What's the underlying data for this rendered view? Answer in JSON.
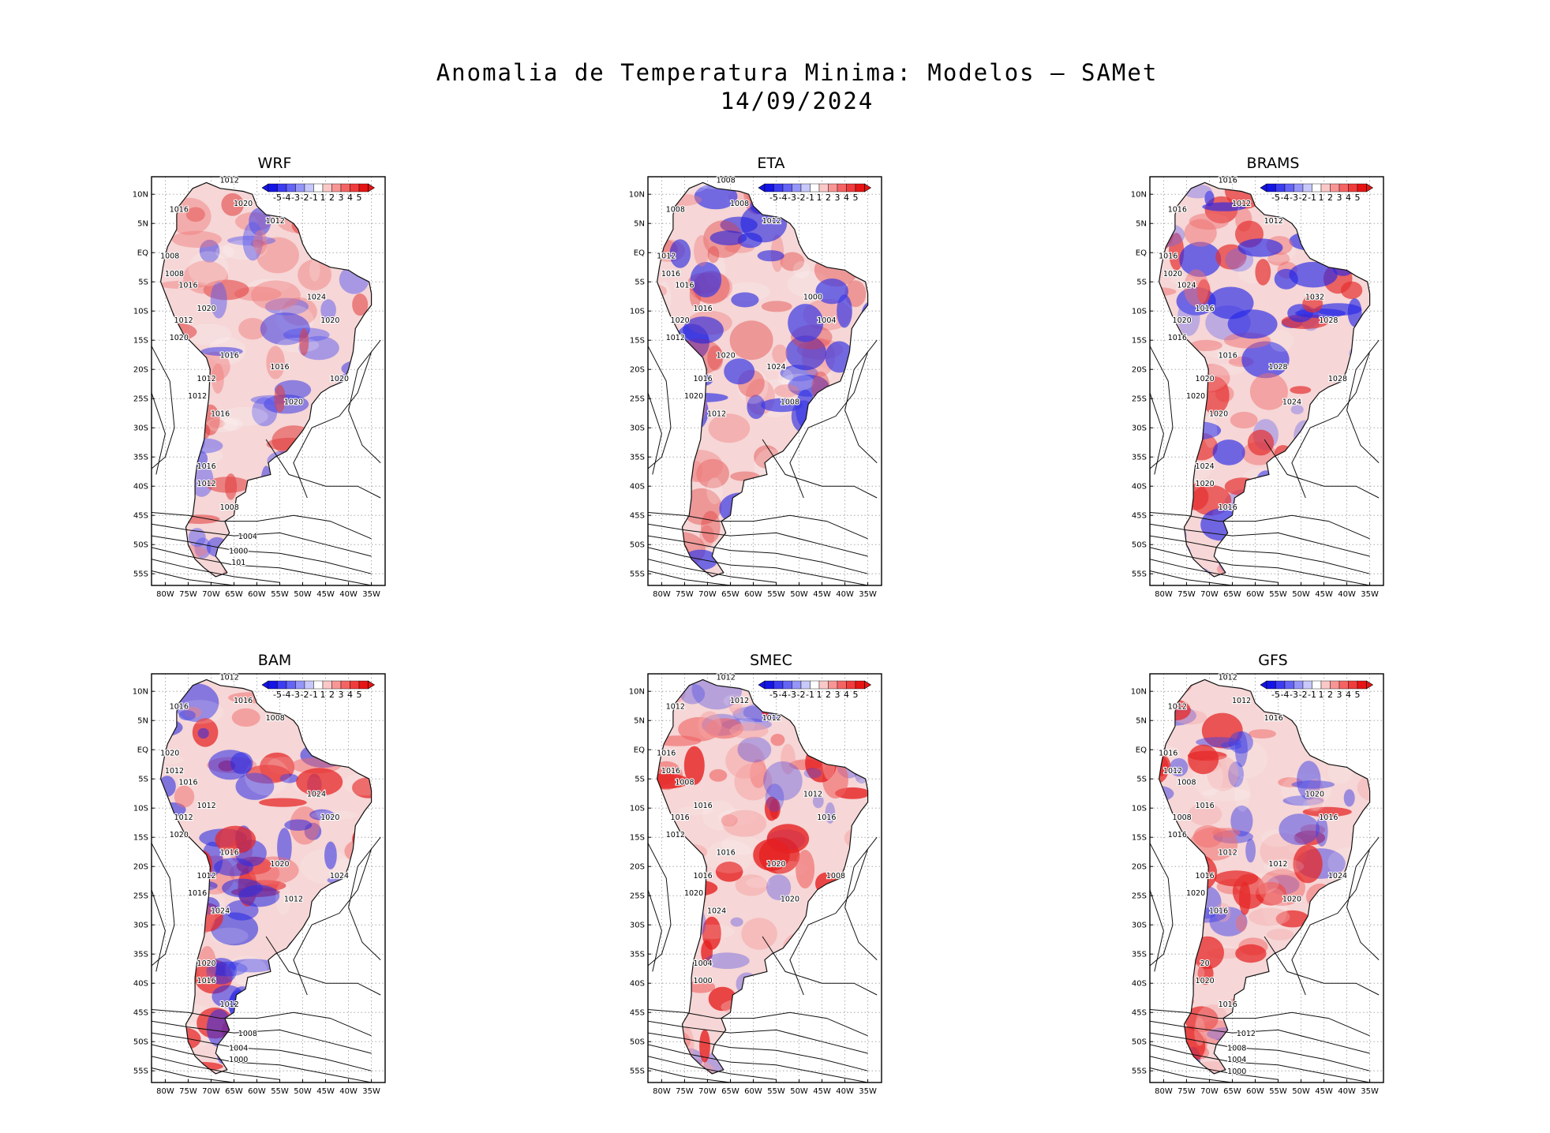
{
  "title": {
    "line1": "Anomalia de Temperatura Minima: Modelos — SAMet",
    "line2": "14/09/2024"
  },
  "axes": {
    "lat_labels": [
      "10N",
      "5N",
      "EQ",
      "5S",
      "10S",
      "15S",
      "20S",
      "25S",
      "30S",
      "35S",
      "40S",
      "45S",
      "50S",
      "55S"
    ],
    "lon_labels": [
      "80W",
      "75W",
      "70W",
      "65W",
      "60W",
      "55W",
      "50W",
      "45W",
      "40W",
      "35W"
    ]
  },
  "colorbar": {
    "labels": [
      "-5",
      "-4",
      "-3",
      "-2",
      "-1",
      "1",
      "2",
      "3",
      "4",
      "5"
    ],
    "colors": [
      "#1414e6",
      "#3c3cf0",
      "#6464f5",
      "#9696f8",
      "#c8c8fb",
      "#ffffff",
      "#fbc8c8",
      "#f89696",
      "#f56464",
      "#f03c3c",
      "#e61414"
    ]
  },
  "panels": [
    {
      "name": "WRF",
      "contours": [
        "1012",
        "1016",
        "1020",
        "1012",
        "1008",
        "1008",
        "1016",
        "1020",
        "1012",
        "1020",
        "1016",
        "1016",
        "1012",
        "1012",
        "1016",
        "1020",
        "1020",
        "1024",
        "1020",
        "1016",
        "1012",
        "1008",
        "1004",
        "1000",
        "101"
      ]
    },
    {
      "name": "ETA",
      "contours": [
        "1008",
        "1008",
        "1008",
        "1012",
        "1012",
        "1016",
        "1016",
        "1016",
        "1020",
        "1012",
        "1020",
        "1024",
        "1016",
        "1020",
        "1012",
        "1008",
        "1004",
        "1000"
      ]
    },
    {
      "name": "BRAMS",
      "contours": [
        "1016",
        "1016",
        "1012",
        "1012",
        "1016",
        "1020",
        "1024",
        "1016",
        "1020",
        "1016",
        "1016",
        "1028",
        "1020",
        "1020",
        "1020",
        "1024",
        "1028",
        "1032",
        "1028",
        "1024",
        "1020",
        "1016"
      ]
    },
    {
      "name": "BAM",
      "contours": [
        "1012",
        "1016",
        "1016",
        "1008",
        "1020",
        "1012",
        "1016",
        "1012",
        "1012",
        "1020",
        "1016",
        "1020",
        "1012",
        "1016",
        "1024",
        "1012",
        "1020",
        "1024",
        "1024",
        "1020",
        "1016",
        "1012",
        "1008",
        "1004",
        "1000"
      ]
    },
    {
      "name": "SMEC",
      "contours": [
        "1012",
        "1012",
        "1012",
        "1012",
        "1016",
        "1016",
        "1008",
        "1016",
        "1016",
        "1012",
        "1016",
        "1020",
        "1016",
        "1020",
        "1024",
        "1020",
        "1016",
        "1012",
        "1008",
        "1004",
        "1000"
      ]
    },
    {
      "name": "GFS",
      "contours": [
        "1012",
        "1012",
        "1012",
        "1016",
        "1016",
        "1012",
        "1008",
        "1016",
        "1008",
        "1016",
        "1012",
        "1012",
        "1016",
        "1020",
        "1016",
        "1020",
        "1016",
        "1020",
        "1024",
        "20",
        "1020",
        "1016",
        "1012",
        "1008",
        "1004",
        "1000"
      ]
    }
  ],
  "anomaly_patterns": [
    [
      [
        "#e03a3a",
        0.55
      ],
      [
        "#3a3ae6",
        0.55
      ],
      [
        "#f07a7a",
        0.45
      ],
      [
        "#5a5af0",
        0.5
      ],
      [
        "#ffffff",
        0.2
      ]
    ],
    [
      [
        "#3a3ae6",
        0.7
      ],
      [
        "#2020e0",
        0.6
      ],
      [
        "#f07a7a",
        0.4
      ],
      [
        "#e03a3a",
        0.4
      ],
      [
        "#ffffff",
        0.2
      ]
    ],
    [
      [
        "#e63030",
        0.7
      ],
      [
        "#f07070",
        0.5
      ],
      [
        "#2828e6",
        0.65
      ],
      [
        "#6a6af0",
        0.4
      ],
      [
        "#ffffff",
        0.15
      ]
    ],
    [
      [
        "#e62828",
        0.75
      ],
      [
        "#f06a6a",
        0.5
      ],
      [
        "#2a2ae6",
        0.55
      ],
      [
        "#3030e0",
        0.6
      ],
      [
        "#ffffff",
        0.15
      ]
    ],
    [
      [
        "#e62020",
        0.8
      ],
      [
        "#f06060",
        0.6
      ],
      [
        "#f6a0a0",
        0.5
      ],
      [
        "#4040e6",
        0.35
      ],
      [
        "#ffffff",
        0.15
      ]
    ],
    [
      [
        "#e62828",
        0.75
      ],
      [
        "#f07070",
        0.55
      ],
      [
        "#4040e6",
        0.5
      ],
      [
        "#f6a8a8",
        0.4
      ],
      [
        "#ffffff",
        0.15
      ]
    ]
  ]
}
